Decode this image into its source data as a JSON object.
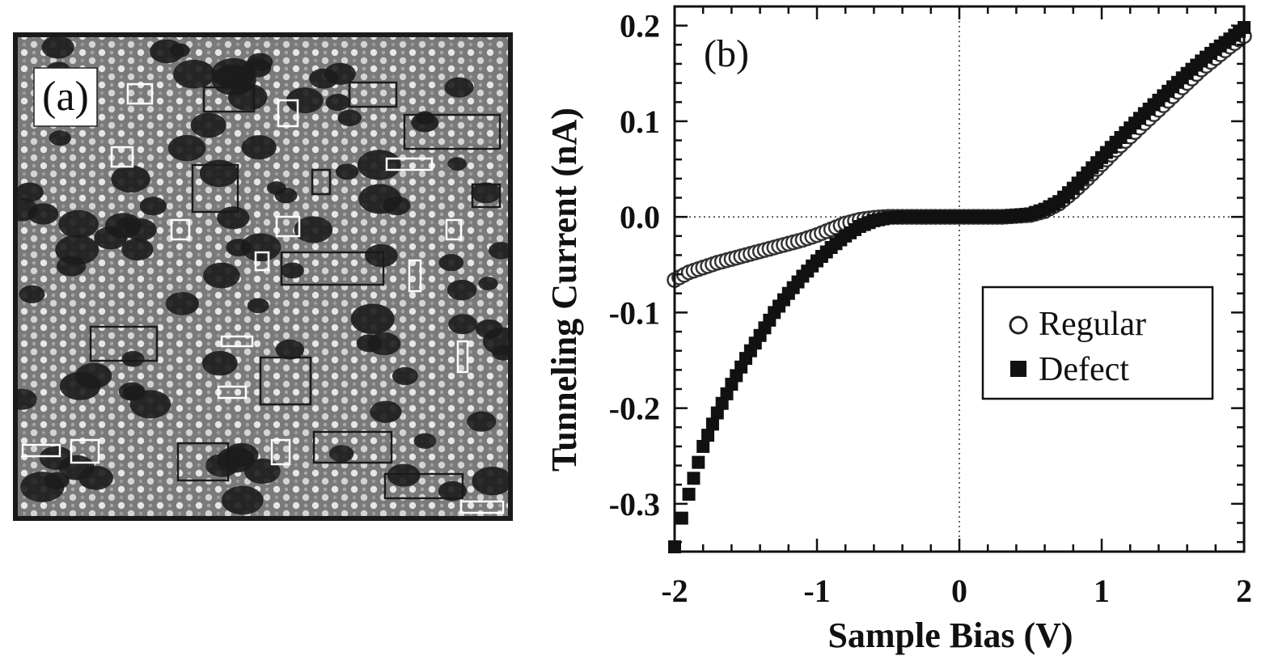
{
  "panel_a": {
    "label": "(a)"
  },
  "panel_b": {
    "label": "(b)"
  },
  "chart_data": {
    "type": "scatter",
    "xlabel": "Sample Bias (V)",
    "ylabel": "Tunneling Current (nA)",
    "xlim": [
      -2,
      2
    ],
    "ylim": [
      -0.35,
      0.22
    ],
    "xticks": [
      -2,
      -1,
      0,
      1,
      2
    ],
    "xtick_labels": [
      "-2",
      "-1",
      "0",
      "1",
      "2"
    ],
    "yticks": [
      -0.3,
      -0.2,
      -0.1,
      0.0,
      0.1,
      0.2
    ],
    "ytick_labels": [
      "-0.3",
      "-0.2",
      "-0.1",
      "0.0",
      "0.1",
      "0.2"
    ],
    "reference_lines": {
      "x": 0,
      "y": 0,
      "style": "dotted"
    },
    "legend": {
      "placement": "center-right",
      "entries": [
        "Regular",
        "Defect"
      ]
    },
    "series": [
      {
        "name": "Regular",
        "marker": "open-circle",
        "x": [
          -2.0,
          -1.9,
          -1.8,
          -1.7,
          -1.6,
          -1.5,
          -1.4,
          -1.3,
          -1.2,
          -1.1,
          -1.0,
          -0.9,
          -0.8,
          -0.7,
          -0.6,
          -0.5,
          -0.4,
          -0.3,
          -0.2,
          -0.1,
          0.0,
          0.1,
          0.2,
          0.3,
          0.4,
          0.5,
          0.6,
          0.7,
          0.8,
          0.9,
          1.0,
          1.1,
          1.2,
          1.3,
          1.4,
          1.5,
          1.6,
          1.7,
          1.8,
          1.9,
          2.0
        ],
        "y": [
          -0.066,
          -0.058,
          -0.053,
          -0.048,
          -0.044,
          -0.04,
          -0.036,
          -0.032,
          -0.028,
          -0.024,
          -0.019,
          -0.013,
          -0.007,
          -0.003,
          -0.001,
          0.0,
          0.0,
          0.0,
          0.0,
          0.0,
          0.0,
          0.0,
          0.0,
          0.0,
          0.001,
          0.002,
          0.006,
          0.014,
          0.026,
          0.04,
          0.055,
          0.07,
          0.084,
          0.098,
          0.112,
          0.126,
          0.14,
          0.154,
          0.166,
          0.178,
          0.189
        ]
      },
      {
        "name": "Defect",
        "marker": "filled-square",
        "x": [
          -2.0,
          -1.95,
          -1.9,
          -1.8,
          -1.7,
          -1.6,
          -1.5,
          -1.4,
          -1.3,
          -1.2,
          -1.1,
          -1.0,
          -0.9,
          -0.8,
          -0.7,
          -0.6,
          -0.5,
          -0.4,
          -0.3,
          -0.2,
          -0.1,
          0.0,
          0.1,
          0.2,
          0.3,
          0.4,
          0.5,
          0.6,
          0.7,
          0.8,
          0.9,
          1.0,
          1.1,
          1.2,
          1.3,
          1.4,
          1.5,
          1.6,
          1.7,
          1.8,
          1.9,
          2.0
        ],
        "y": [
          -0.345,
          -0.315,
          -0.29,
          -0.24,
          -0.205,
          -0.175,
          -0.148,
          -0.124,
          -0.1,
          -0.08,
          -0.062,
          -0.046,
          -0.032,
          -0.02,
          -0.01,
          -0.004,
          -0.001,
          0.0,
          0.0,
          0.0,
          0.0,
          0.0,
          0.0,
          0.0,
          0.0,
          0.001,
          0.003,
          0.008,
          0.016,
          0.03,
          0.046,
          0.062,
          0.078,
          0.093,
          0.108,
          0.122,
          0.136,
          0.15,
          0.163,
          0.175,
          0.186,
          0.198
        ]
      }
    ]
  }
}
